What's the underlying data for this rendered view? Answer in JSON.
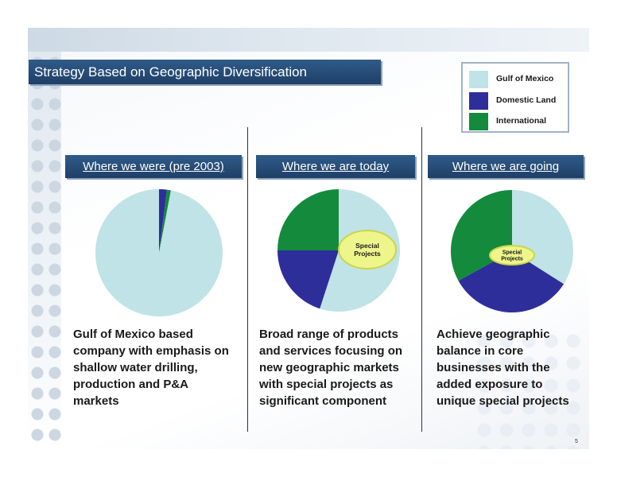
{
  "slide": {
    "title": "Strategy Based on Geographic Diversification",
    "page_number": "5"
  },
  "legend": {
    "items": [
      {
        "label": "Gulf of Mexico",
        "color": "#bfe3e6"
      },
      {
        "label": "Domestic Land",
        "color": "#2e2e9a"
      },
      {
        "label": "International",
        "color": "#138a3c"
      }
    ]
  },
  "columns": [
    {
      "header": "Where we were (pre 2003)",
      "text": "Gulf of Mexico based\ncompany with emphasis on\nshallow water drilling,\nproduction and P&A\nmarkets"
    },
    {
      "header": "Where we are today",
      "text": "Broad range of products\nand services focusing on\nnew geographic markets\nwith special projects as\nsignificant component"
    },
    {
      "header": "Where we are going",
      "text": "Achieve geographic\nbalance in core\nbusinesses with the\nadded exposure to\nunique special projects"
    }
  ],
  "chart_data": [
    {
      "type": "pie",
      "title": "Where we were (pre 2003)",
      "categories": [
        "Gulf of Mexico",
        "Domestic Land",
        "International"
      ],
      "values": [
        97,
        2,
        1
      ],
      "annotation": ""
    },
    {
      "type": "pie",
      "title": "Where we are today",
      "categories": [
        "Gulf of Mexico",
        "Domestic Land",
        "International"
      ],
      "values": [
        55,
        20,
        25
      ],
      "annotation": "Special\nProjects"
    },
    {
      "type": "pie",
      "title": "Where we are going",
      "categories": [
        "Gulf of Mexico",
        "Domestic Land",
        "International"
      ],
      "values": [
        34,
        33,
        33
      ],
      "annotation": "Special\nProjects"
    }
  ]
}
